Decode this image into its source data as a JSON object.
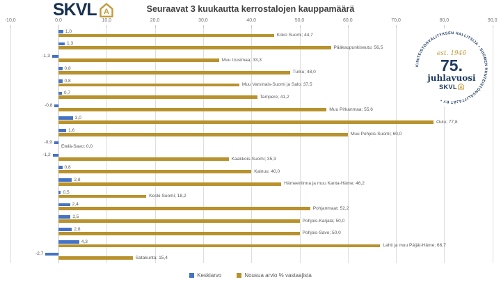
{
  "header": {
    "logo_text": "SKVL",
    "logo_a": "A"
  },
  "badge": {
    "ring_text": "KIINTEISTÖNVÄLITYKSEN HALLITSIJA • SUOMEN KIINTEISTÖNVÄLITTÄJÄT RY •",
    "est": "est. 1946",
    "anniversary": "75.",
    "anniversary_label": "juhlavuosi",
    "brand": "SKVL",
    "brand_a": "A"
  },
  "chart_data": {
    "type": "bar",
    "orientation": "horizontal",
    "title": "Seuraavat 3 kuukautta kerrostalojen kauppamäärä",
    "xlim": [
      -10,
      90
    ],
    "tick_step": 10,
    "tick_labels": [
      "-10,0",
      "0,0",
      "10,0",
      "20,0",
      "30,0",
      "40,0",
      "50,0",
      "60,0",
      "70,0",
      "80,0",
      "90,0"
    ],
    "grid": true,
    "legend_position": "bottom",
    "value_format": "fi-decimal-comma",
    "categories": [
      "Koko Suomi",
      "Pääkaupunkiseutu",
      "Muu Uusimaa",
      "Turku",
      "Muu Varsinais-Suomi ja Salo",
      "Tampere",
      "Muu Pirkanmaa",
      "Oulu",
      "Muu Pohjois-Suomi",
      "Etelä-Savo",
      "Kaakkois-Suomi",
      "Kainuu",
      "Hämeenlinna ja muu Kanta-Häme",
      "Keski-Suomi",
      "Pohjanmaat",
      "Pohjois-Karjala",
      "Pohjois-Savo",
      "Lahti ja muu Päijät-Häme",
      "Satakunta"
    ],
    "series": [
      {
        "name": "Keskiarvo",
        "color": "#4472C4",
        "values": [
          1.0,
          1.3,
          -1.3,
          0.8,
          0.8,
          0.7,
          -0.8,
          3.0,
          1.6,
          -0.9,
          -1.2,
          0.8,
          2.8,
          0.5,
          2.4,
          2.5,
          2.8,
          4.3,
          -2.7
        ]
      },
      {
        "name": "Nousua arvio % vastaajista",
        "color": "#B8922D",
        "values": [
          44.7,
          56.5,
          33.3,
          48.0,
          37.5,
          41.2,
          55.6,
          77.8,
          60.0,
          0.0,
          35.3,
          40.0,
          46.2,
          18.2,
          52.2,
          50.0,
          50.0,
          66.7,
          15.4
        ]
      }
    ]
  },
  "legend": {
    "items": [
      {
        "label": "Keskiarvo",
        "color": "#4472C4"
      },
      {
        "label": "Nousua arvio % vastaajista",
        "color": "#B8922D"
      }
    ]
  }
}
